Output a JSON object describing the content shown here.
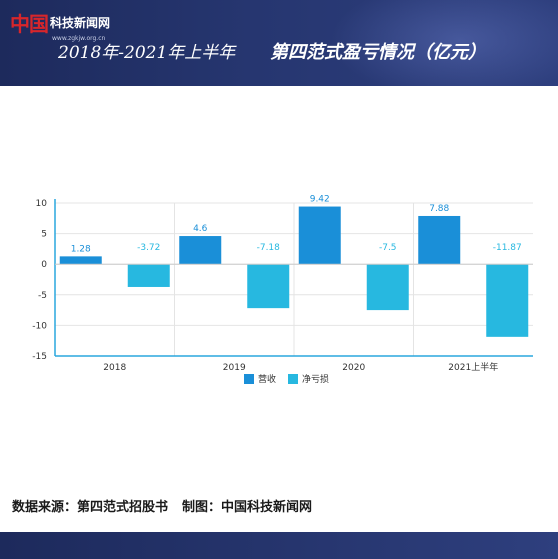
{
  "header": {
    "logo_cn": "中国",
    "logo_name": "科技新闻网",
    "logo_url": "www.zgkjw.org.cn",
    "title_period": "2018年-2021年上半年",
    "title_main": "第四范式盈亏情况（亿元）"
  },
  "footer": {
    "source": "数据来源：第四范式招股书",
    "credit": "制图：中国科技新闻网"
  },
  "colors": {
    "revenue": "#1a8fd8",
    "net_loss": "#27b8e0",
    "banner": "#263670"
  },
  "chart_data": {
    "type": "bar",
    "title": "",
    "xlabel": "",
    "ylabel": "",
    "categories": [
      "2018",
      "2019",
      "2020",
      "2021上半年"
    ],
    "series": [
      {
        "name": "营收",
        "values": [
          1.28,
          4.6,
          9.42,
          7.88
        ],
        "labels": [
          "1.28",
          "4.6",
          "9.42",
          "7.88"
        ]
      },
      {
        "name": "净亏损",
        "values": [
          -3.72,
          -7.18,
          -7.5,
          -11.87
        ],
        "labels": [
          "-3.72",
          "-7.18",
          "-7.5",
          "-11.87"
        ]
      }
    ],
    "ylim": [
      -15,
      10
    ],
    "yticks": [
      10,
      5,
      0,
      -5,
      -10,
      -15
    ],
    "grid": true,
    "legend": "bottom"
  }
}
